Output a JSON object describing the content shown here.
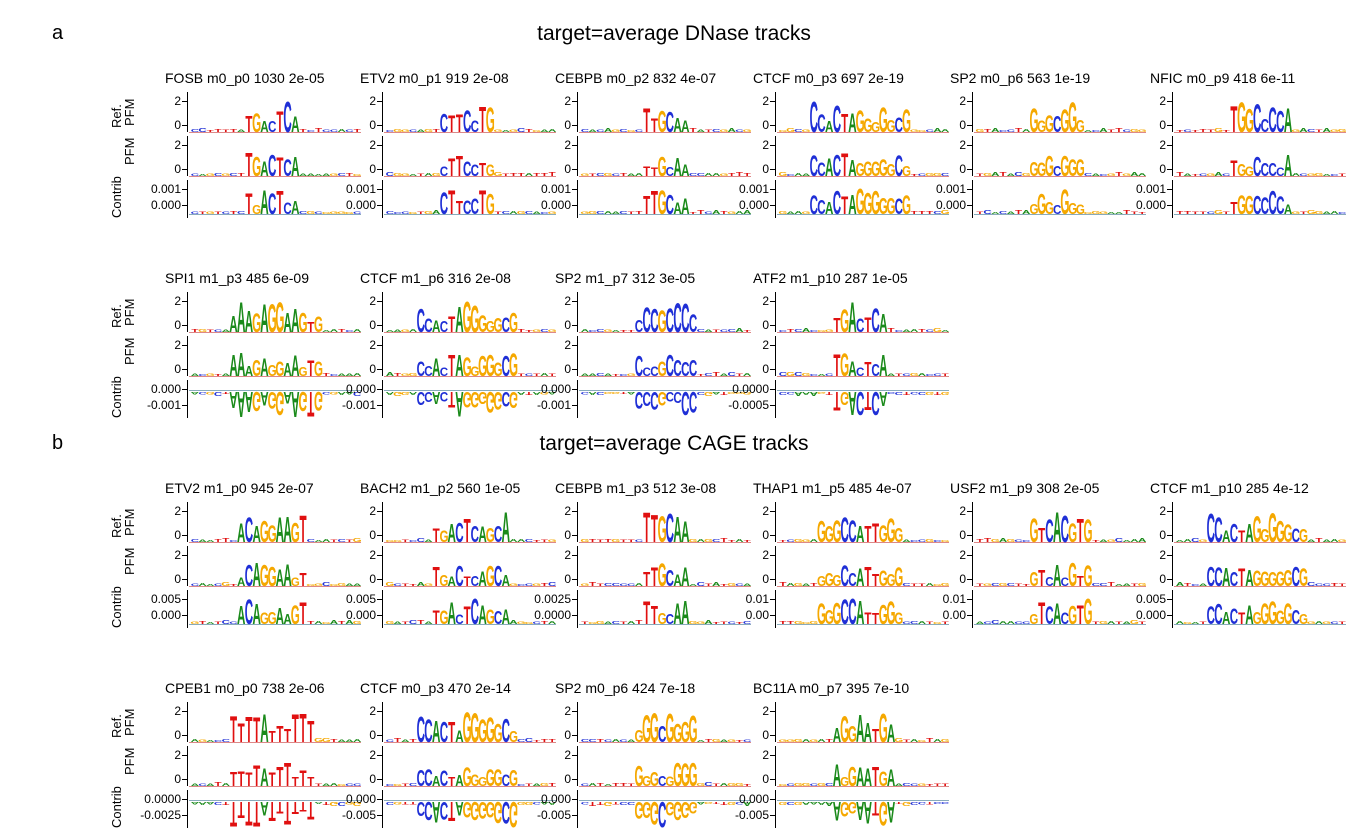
{
  "panels": [
    {
      "letter": "a",
      "title": "target=average DNase tracks",
      "rows": [
        [
          {
            "title": "FOSB m0_p0 1030 2e-05",
            "seq": "TGACTCA",
            "contrib_ticks": [
              "0.001",
              "0.000"
            ],
            "negative": false
          },
          {
            "title": "ETV2 m0_p1 919 2e-08",
            "seq": "CTTCCTG",
            "contrib_ticks": [
              "0.001",
              "0.000"
            ],
            "negative": false
          },
          {
            "title": "CEBPB m0_p2 832 4e-07",
            "seq": "TTGCAA",
            "contrib_ticks": [
              "0.001",
              "0.000"
            ],
            "negative": false
          },
          {
            "title": "CTCF m0_p3 697 2e-19",
            "seq": "CCACTAGGGGGCG",
            "contrib_ticks": [
              "0.001",
              "0.000"
            ],
            "negative": false
          },
          {
            "title": "SP2 m0_p6 563 1e-19",
            "seq": "GGGCGGG",
            "contrib_ticks": [
              "0.001",
              "0.000"
            ],
            "negative": false
          },
          {
            "title": "NFIC m0_p9 418 6e-11",
            "seq": "TGGCCCCA",
            "contrib_ticks": [
              "0.001",
              "0.000"
            ],
            "negative": false
          }
        ],
        [
          {
            "title": "SPI1 m1_p3 485 6e-09",
            "seq": "AAAGAGGAAGTG",
            "contrib_ticks": [
              "0.000",
              "-0.001"
            ],
            "negative": true
          },
          {
            "title": "CTCF m1_p6 316 2e-08",
            "seq": "CCACTAGGGGGCG",
            "contrib_ticks": [
              "0.000",
              "-0.001"
            ],
            "negative": true
          },
          {
            "title": "SP2 m1_p7 312 3e-05",
            "seq": "CCCGCCCC",
            "contrib_ticks": [
              "0.000",
              "-0.001"
            ],
            "negative": true
          },
          {
            "title": "ATF2 m1_p10 287 1e-05",
            "seq": "TGACTCA",
            "contrib_ticks": [
              "0.0000",
              "-0.0005"
            ],
            "negative": true
          }
        ]
      ]
    },
    {
      "letter": "b",
      "title": "target=average CAGE tracks",
      "rows": [
        [
          {
            "title": "ETV2 m1_p0 945 2e-07",
            "seq": "ACAGGAAGT",
            "contrib_ticks": [
              "0.005",
              "0.000"
            ],
            "negative": false
          },
          {
            "title": "BACH2 m1_p2 560 1e-05",
            "seq": "TGACTCAGCA",
            "contrib_ticks": [
              "0.005",
              "0.000"
            ],
            "negative": false
          },
          {
            "title": "CEBPB m1_p3 512 3e-08",
            "seq": "TTGCAA",
            "contrib_ticks": [
              "0.0025",
              "0.0000"
            ],
            "negative": false
          },
          {
            "title": "THAP1 m1_p5 485 4e-07",
            "seq": "GGGCCATTGGG",
            "contrib_ticks": [
              "0.01",
              "0.00"
            ],
            "negative": false
          },
          {
            "title": "USF2 m1_p9 308 2e-05",
            "seq": "GTCACGTG",
            "contrib_ticks": [
              "0.01",
              "0.00"
            ],
            "negative": false
          },
          {
            "title": "CTCF m1_p10 285 4e-12",
            "seq": "CCACTAGGGGGCG",
            "contrib_ticks": [
              "0.005",
              "0.000"
            ],
            "negative": false
          }
        ],
        [
          {
            "title": "CPEB1 m0_p0 738 2e-06",
            "seq": "TTTTATTTTTT",
            "contrib_ticks": [
              "0.0000",
              "-0.0025"
            ],
            "negative": true
          },
          {
            "title": "CTCF m0_p3 470 2e-14",
            "seq": "CCACTAGGGGGCG",
            "contrib_ticks": [
              "0.000",
              "-0.005"
            ],
            "negative": true
          },
          {
            "title": "SP2 m0_p6 424 7e-18",
            "seq": "GGGCGGGG",
            "contrib_ticks": [
              "0.000",
              "-0.005"
            ],
            "negative": true
          },
          {
            "title": "BC11A m0_p7 395 7e-10",
            "seq": "AGGAATGA",
            "contrib_ticks": [
              "0.000",
              "-0.005"
            ],
            "negative": true
          }
        ]
      ]
    }
  ],
  "row_labels": {
    "ref": "Ref.",
    "pfm": "PFM",
    "contrib": "Contrib"
  },
  "pfm_ticks": {
    "top": "2",
    "bottom": "0"
  },
  "colors": {
    "A": "#1a8a1a",
    "C": "#1f2fd6",
    "G": "#f5a800",
    "T": "#e01010"
  }
}
